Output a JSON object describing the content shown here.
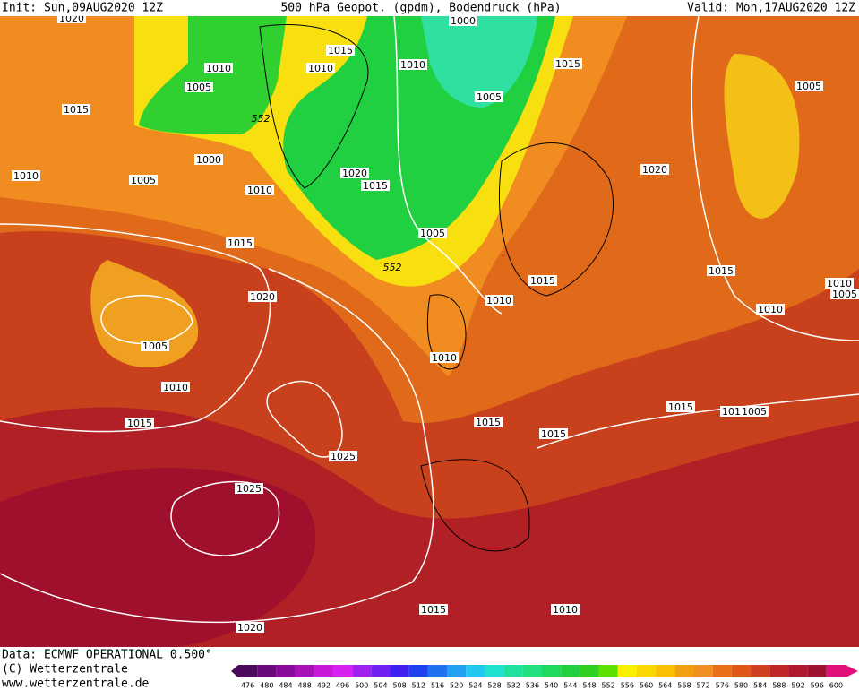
{
  "header": {
    "init": "Init: Sun,09AUG2020 12Z",
    "title": "500 hPa Geopot. (gpdm), Bodendruck (hPa)",
    "valid": "Valid: Mon,17AUG2020 12Z"
  },
  "isobars": [
    "1020",
    "1010",
    "1005",
    "1015",
    "552",
    "1000",
    "1005",
    "1010",
    "1010",
    "1010",
    "1015",
    "1000",
    "1010",
    "1005",
    "1015",
    "1020",
    "1015",
    "1005",
    "552",
    "1015",
    "1020",
    "1005",
    "1010",
    "1015",
    "1025",
    "1025",
    "1020",
    "1015",
    "1010",
    "1010",
    "1015",
    "1010",
    "1015",
    "1015",
    "1020",
    "1005",
    "1015",
    "1010",
    "1010",
    "1005",
    "1015",
    "1010",
    "1005"
  ],
  "footer": {
    "data": "Data: ECMWF OPERATIONAL 0.500°",
    "copyright": "(C) Wetterzentrale",
    "url": "www.wetterzentrale.de"
  },
  "colorbar": {
    "labels": [
      476,
      480,
      484,
      488,
      492,
      496,
      500,
      504,
      508,
      512,
      516,
      520,
      524,
      528,
      532,
      536,
      540,
      544,
      548,
      552,
      556,
      560,
      564,
      568,
      572,
      576,
      580,
      584,
      588,
      592,
      596,
      600
    ],
    "colors": [
      "#4b0a5a",
      "#6a0a7a",
      "#8a0a9a",
      "#a810b8",
      "#c818d8",
      "#d820f0",
      "#a020f0",
      "#7020f0",
      "#4020f0",
      "#2040f0",
      "#2070f0",
      "#20a0f0",
      "#20c8f0",
      "#20e0d0",
      "#20e0a0",
      "#20e080",
      "#20d860",
      "#20d040",
      "#30d020",
      "#60e000",
      "#f8f000",
      "#f8d800",
      "#f8c000",
      "#f0a010",
      "#f09020",
      "#e87018",
      "#e05818",
      "#d04020",
      "#c02828",
      "#b01830",
      "#a01030",
      "#e0107a"
    ]
  }
}
